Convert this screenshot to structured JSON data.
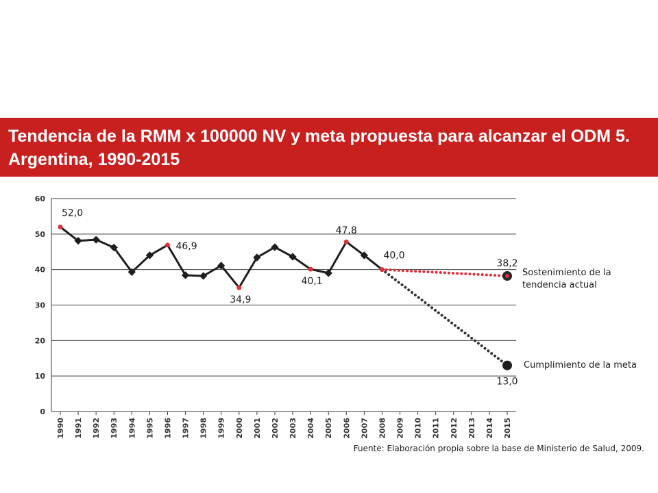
{
  "slide": {
    "title": "Tendencia de la RMM x 100000 NV y meta propuesta para alcanzar el ODM 5. Argentina, 1990-2015",
    "banner_color": "#c8201f"
  },
  "chart_data": {
    "type": "line",
    "x": [
      1990,
      1991,
      1992,
      1993,
      1994,
      1995,
      1996,
      1997,
      1998,
      1999,
      2000,
      2001,
      2002,
      2003,
      2004,
      2005,
      2006,
      2007,
      2008,
      2009,
      2010,
      2011,
      2012,
      2013,
      2014,
      2015
    ],
    "ylim": [
      0,
      60
    ],
    "yticks": [
      0,
      10,
      20,
      30,
      40,
      50,
      60
    ],
    "grid": true,
    "series": [
      {
        "style": "solid",
        "color": "#1e1e1e",
        "points": [
          {
            "x": 1990,
            "y": 52.0
          },
          {
            "x": 1991,
            "y": 48.1
          },
          {
            "x": 1992,
            "y": 48.4
          },
          {
            "x": 1993,
            "y": 46.2
          },
          {
            "x": 1994,
            "y": 39.3
          },
          {
            "x": 1995,
            "y": 44.0
          },
          {
            "x": 1996,
            "y": 46.9
          },
          {
            "x": 1997,
            "y": 38.4
          },
          {
            "x": 1998,
            "y": 38.2
          },
          {
            "x": 1999,
            "y": 41.1
          },
          {
            "x": 2000,
            "y": 34.9
          },
          {
            "x": 2001,
            "y": 43.4
          },
          {
            "x": 2002,
            "y": 46.3
          },
          {
            "x": 2003,
            "y": 43.6
          },
          {
            "x": 2004,
            "y": 40.1
          },
          {
            "x": 2005,
            "y": 39.0
          },
          {
            "x": 2006,
            "y": 47.8
          },
          {
            "x": 2007,
            "y": 44.0
          },
          {
            "x": 2008,
            "y": 40.0
          }
        ],
        "highlighted_years": [
          1990,
          1996,
          2000,
          2004,
          2006
        ],
        "highlight_color": "#e0303a"
      },
      {
        "name": "Sostenimiento de la tendencia actual",
        "style": "dotted",
        "color": "#e0303a",
        "points": [
          {
            "x": 2008,
            "y": 40.0
          },
          {
            "x": 2015,
            "y": 38.2
          }
        ]
      },
      {
        "name": "Cumplimiento de la meta",
        "style": "dotted",
        "color": "#333333",
        "points": [
          {
            "x": 2008,
            "y": 40.0
          },
          {
            "x": 2015,
            "y": 13.0
          }
        ]
      }
    ],
    "data_labels": [
      {
        "x": 1990,
        "y": 52.0,
        "text": "52,0",
        "pos": "above-right"
      },
      {
        "x": 1996,
        "y": 46.9,
        "text": "46,9",
        "pos": "right"
      },
      {
        "x": 2000,
        "y": 34.9,
        "text": "34,9",
        "pos": "below"
      },
      {
        "x": 2004,
        "y": 40.1,
        "text": "40,1",
        "pos": "below"
      },
      {
        "x": 2006,
        "y": 47.8,
        "text": "47,8",
        "pos": "above"
      },
      {
        "x": 2008,
        "y": 40.0,
        "text": "40,0",
        "pos": "above-right"
      },
      {
        "x": 2015,
        "y": 38.2,
        "text": "38,2",
        "pos": "above"
      },
      {
        "x": 2015,
        "y": 13.0,
        "text": "13,0",
        "pos": "below"
      }
    ],
    "annotations": {
      "trend_line1": "Sostenimiento de la",
      "trend_line2": "tendencia actual",
      "goal": "Cumplimiento de la meta"
    },
    "source": "Fuente: Elaboración propia sobre la base de Ministerio de Salud, 2009."
  }
}
